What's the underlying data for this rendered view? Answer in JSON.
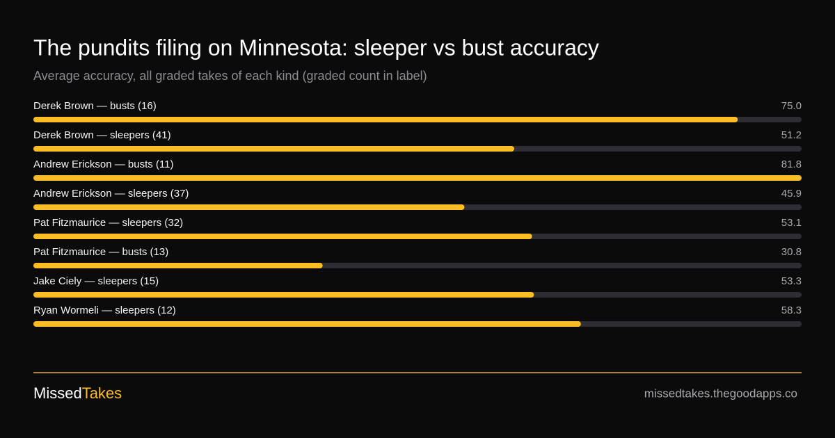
{
  "chart_data": {
    "type": "bar",
    "orientation": "horizontal",
    "title": "The pundits filing on Minnesota: sleeper vs bust accuracy",
    "subtitle": "Average accuracy, all graded takes of each kind (graded count in label)",
    "categories": [
      "Derek Brown — busts (16)",
      "Derek Brown — sleepers (41)",
      "Andrew Erickson — busts (11)",
      "Andrew Erickson — sleepers (37)",
      "Pat Fitzmaurice — sleepers (32)",
      "Pat Fitzmaurice — busts (13)",
      "Jake Ciely — sleepers (15)",
      "Ryan Wormeli — sleepers (12)"
    ],
    "values": [
      75.0,
      51.2,
      81.8,
      45.9,
      53.1,
      30.8,
      53.3,
      58.3
    ],
    "value_labels": [
      "75.0",
      "51.2",
      "81.8",
      "45.9",
      "53.1",
      "30.8",
      "53.3",
      "58.3"
    ],
    "xlim": [
      0,
      81.8
    ],
    "color": "#fbbd23",
    "track_color": "#2e2d33"
  },
  "footer": {
    "brand_first": "Missed",
    "brand_second": "Takes",
    "url": "missedtakes.thegoodapps.co"
  }
}
